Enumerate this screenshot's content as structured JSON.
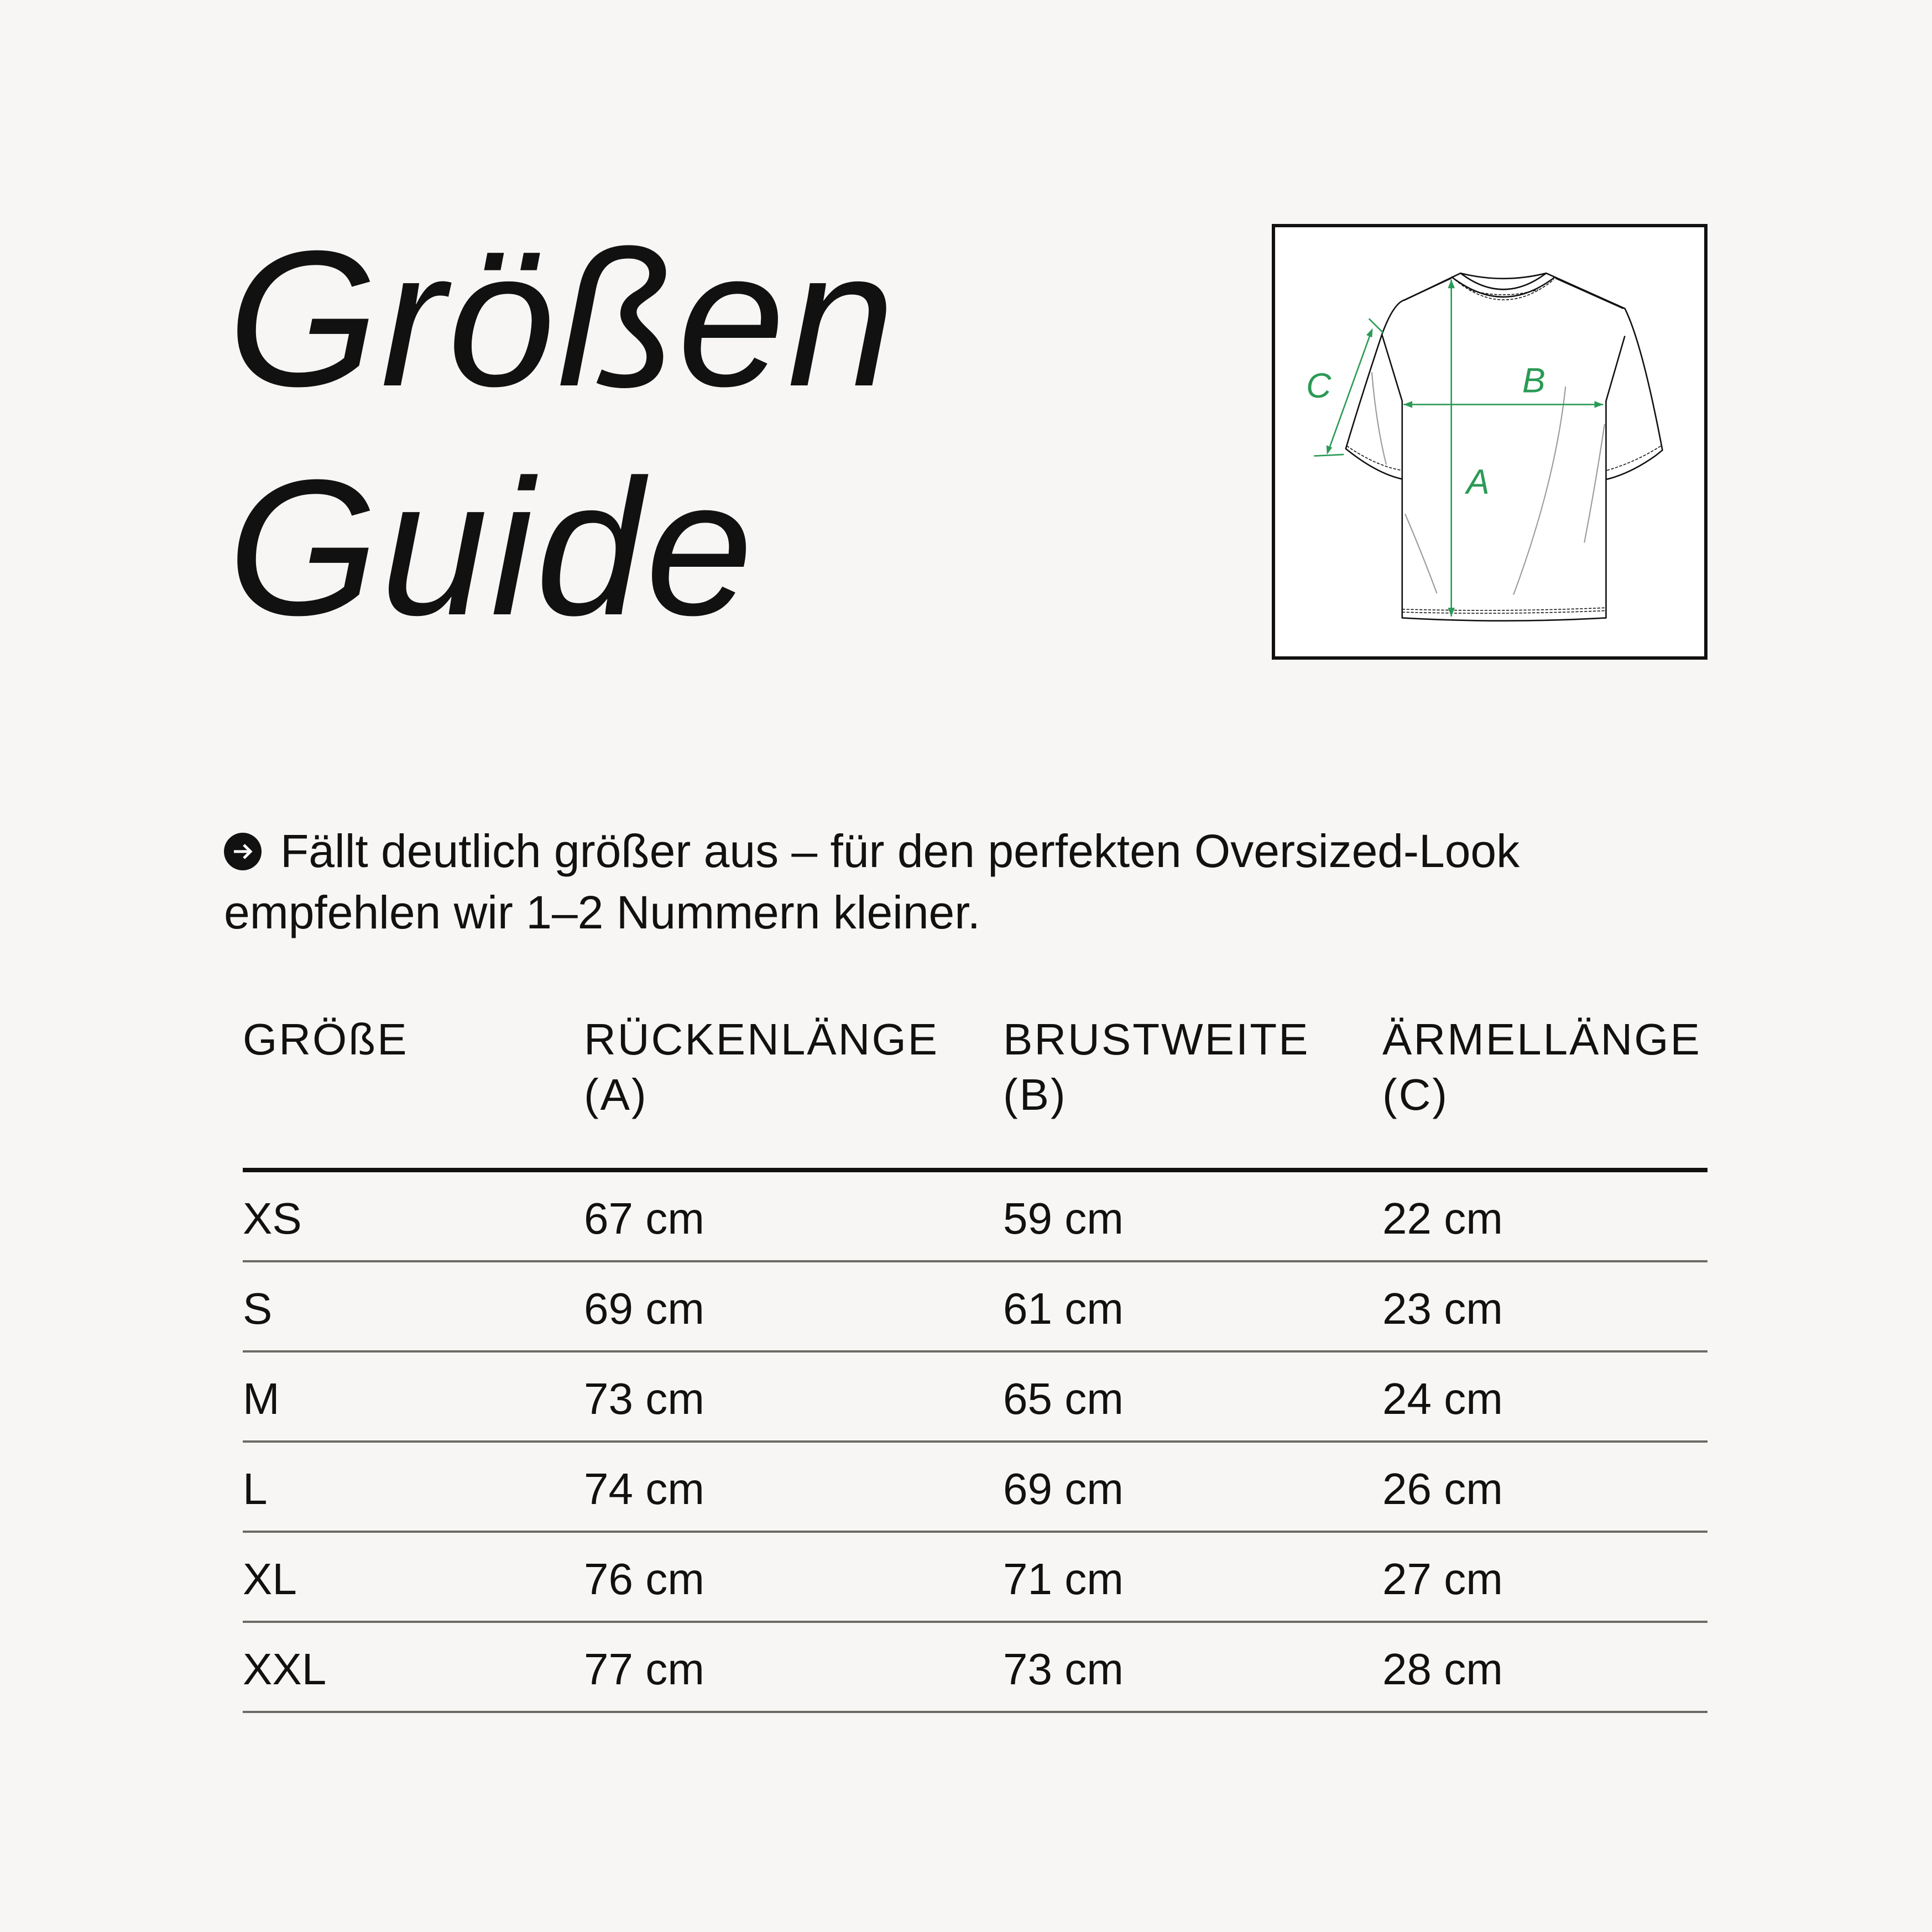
{
  "title": {
    "line1": "Größen",
    "line2": "Guide"
  },
  "diagram": {
    "labels": {
      "a": "A",
      "b": "B",
      "c": "C"
    },
    "accent_color": "#2a9a55",
    "icon": "t-shirt-measurement-diagram"
  },
  "note": {
    "icon": "arrow-right-circle-icon",
    "text": "Fällt deutlich größer aus – für den perfekten Oversized-Look empfehlen wir 1–2 Nummern kleiner."
  },
  "table": {
    "headers": [
      {
        "line1": "GRÖßE",
        "line2": ""
      },
      {
        "line1": "RÜCKENLÄNGE",
        "line2": "(A)"
      },
      {
        "line1": "BRUSTWEITE",
        "line2": "(B)"
      },
      {
        "line1": "ÄRMELLÄNGE",
        "line2": "(C)"
      }
    ],
    "rows": [
      [
        "XS",
        "67 cm",
        "59 cm",
        "22 cm"
      ],
      [
        "S",
        "69 cm",
        "61 cm",
        "23 cm"
      ],
      [
        "M",
        "73 cm",
        "65 cm",
        "24 cm"
      ],
      [
        "L",
        "74 cm",
        "69 cm",
        "26 cm"
      ],
      [
        "XL",
        "76 cm",
        "71 cm",
        "27 cm"
      ],
      [
        "XXL",
        "77 cm",
        "73 cm",
        "28 cm"
      ]
    ]
  }
}
